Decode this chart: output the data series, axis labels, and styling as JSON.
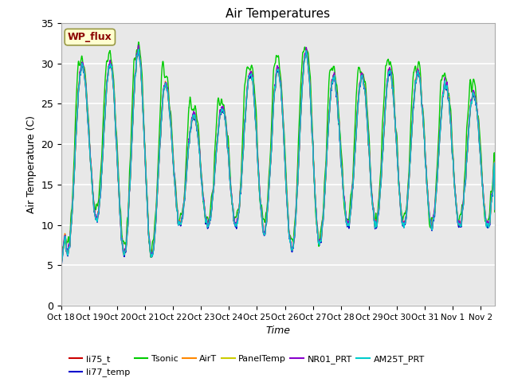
{
  "title": "Air Temperatures",
  "xlabel": "Time",
  "ylabel": "Air Temperature (C)",
  "ylim": [
    0,
    35
  ],
  "x_tick_labels": [
    "Oct 18",
    "Oct 19",
    "Oct 20",
    "Oct 21",
    "Oct 22",
    "Oct 23",
    "Oct 24",
    "Oct 25",
    "Oct 26",
    "Oct 27",
    "Oct 28",
    "Oct 29",
    "Oct 30",
    "Oct 31",
    "Nov 1",
    "Nov 2"
  ],
  "annotation_text": "WP_flux",
  "annotation_color": "#8B0000",
  "annotation_bg": "#FFFFD0",
  "series": [
    {
      "name": "li75_t",
      "color": "#CC0000",
      "lw": 1.0
    },
    {
      "name": "li77_temp",
      "color": "#0000CC",
      "lw": 1.0
    },
    {
      "name": "Tsonic",
      "color": "#00CC00",
      "lw": 1.0
    },
    {
      "name": "AirT",
      "color": "#FF8800",
      "lw": 1.0
    },
    {
      "name": "PanelTemp",
      "color": "#CCCC00",
      "lw": 1.0
    },
    {
      "name": "NR01_PRT",
      "color": "#8800CC",
      "lw": 1.0
    },
    {
      "name": "AM25T_PRT",
      "color": "#00CCCC",
      "lw": 1.0
    }
  ],
  "bg_color": "#E8E8E8",
  "grid_color": "#FFFFFF",
  "n_days": 15.5,
  "pts_per_day": 144
}
